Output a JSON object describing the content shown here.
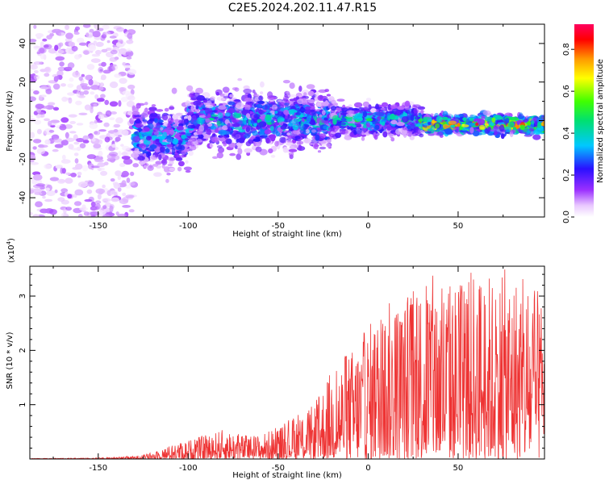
{
  "title": "C2E5.2024.202.11.47.R15",
  "chart_data": [
    {
      "type": "heatmap",
      "xlabel": "Height of straight line (km)",
      "ylabel": "Frequency (Hz)",
      "xlim": [
        -188,
        98
      ],
      "ylim": [
        -50,
        50
      ],
      "x_ticks": [
        -150,
        -100,
        -50,
        0,
        50
      ],
      "y_ticks": [
        -40,
        -20,
        0,
        20,
        40
      ],
      "colorbar": {
        "label": "Normalized spectral amplitude",
        "range": [
          0,
          0.92
        ],
        "ticks": [
          0.0,
          0.2,
          0.4,
          0.6,
          0.8
        ],
        "tick_labels": [
          "0.0",
          "0.2",
          "0.4",
          "0.6",
          "0.8"
        ]
      },
      "regions": [
        {
          "x_range": [
            -188,
            -130
          ],
          "freq_center": 0,
          "freq_halfwidth": 50,
          "amplitude_peak": 0.12
        },
        {
          "x_range": [
            -130,
            -100
          ],
          "freq_center": -8,
          "freq_halfwidth": 14,
          "amplitude_peak": 0.4
        },
        {
          "x_range": [
            -100,
            -20
          ],
          "freq_center": 0,
          "freq_halfwidth": 13,
          "amplitude_peak": 0.45
        },
        {
          "x_range": [
            -20,
            30
          ],
          "freq_center": 0,
          "freq_halfwidth": 7,
          "amplitude_peak": 0.5
        },
        {
          "x_range": [
            30,
            98
          ],
          "freq_center": -2,
          "freq_halfwidth": 4,
          "amplitude_peak": 0.9
        }
      ]
    },
    {
      "type": "line",
      "xlabel": "Height of straight line (km)",
      "ylabel": "SNR (10 * v/v)",
      "y_exponent_label": "(x10",
      "y_exponent_power": "4",
      "y_exponent_close": ")",
      "xlim": [
        -188,
        98
      ],
      "ylim": [
        0,
        3.55
      ],
      "x_ticks": [
        -150,
        -100,
        -50,
        0,
        50
      ],
      "y_ticks": [
        1,
        2,
        3
      ],
      "color": "#ee3333",
      "envelope": {
        "x": [
          -188,
          -150,
          -130,
          -120,
          -110,
          -100,
          -90,
          -80,
          -70,
          -60,
          -50,
          -40,
          -30,
          -20,
          -10,
          0,
          10,
          20,
          30,
          40,
          50,
          60,
          70,
          80,
          90,
          98
        ],
        "y_max": [
          0.01,
          0.02,
          0.05,
          0.12,
          0.25,
          0.35,
          0.45,
          0.55,
          0.45,
          0.45,
          0.6,
          0.8,
          1.0,
          1.7,
          2.0,
          2.5,
          2.9,
          3.0,
          3.4,
          3.4,
          3.3,
          3.55,
          3.4,
          3.55,
          3.2,
          3.0
        ]
      }
    }
  ]
}
